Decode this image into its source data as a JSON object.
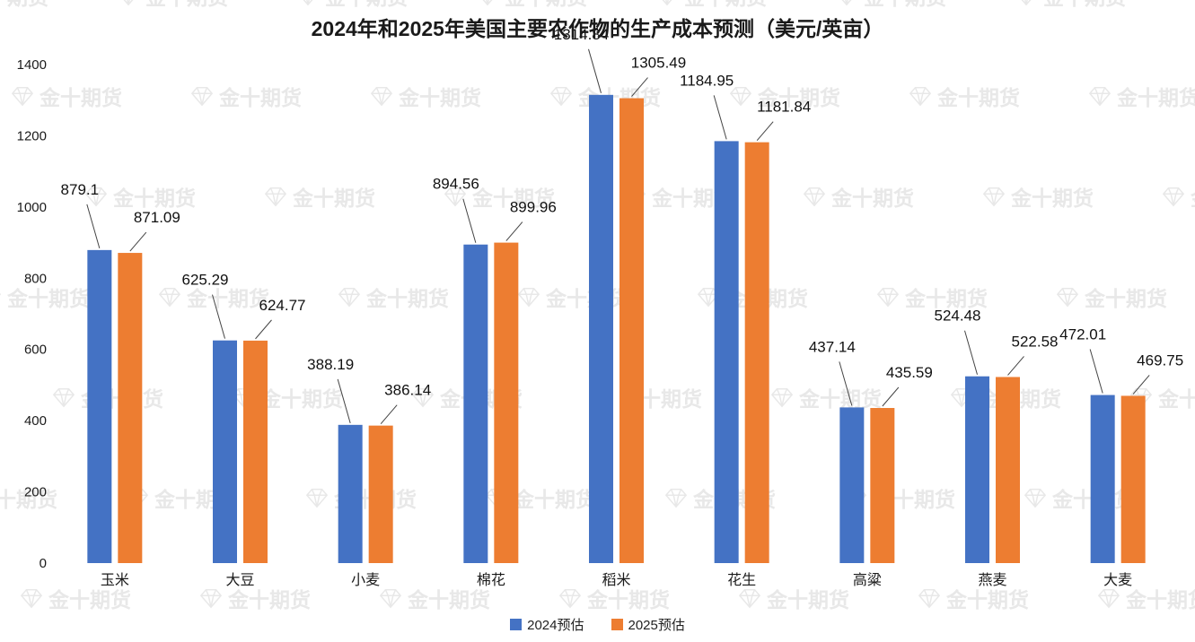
{
  "watermark": {
    "icon": "gem-icon",
    "text": "金十期货"
  },
  "chart_data": {
    "type": "bar",
    "title": "2024年和2025年美国主要农作物的生产成本预测（美元/英亩）",
    "categories": [
      "玉米",
      "大豆",
      "小麦",
      "棉花",
      "稻米",
      "花生",
      "高粱",
      "燕麦",
      "大麦"
    ],
    "series": [
      {
        "name": "2024预估",
        "color": "#4472C4",
        "values": [
          879.1,
          625.29,
          388.19,
          894.56,
          1314.84,
          1184.95,
          437.14,
          524.48,
          472.01
        ]
      },
      {
        "name": "2025预估",
        "color": "#ED7D31",
        "values": [
          871.09,
          624.77,
          386.14,
          899.96,
          1305.49,
          1181.84,
          435.59,
          522.58,
          469.75
        ]
      }
    ],
    "xlabel": "",
    "ylabel": "",
    "ylim": [
      0,
      1400
    ],
    "yticks": [
      0,
      200,
      400,
      600,
      800,
      1000,
      1200,
      1400
    ],
    "grid": false,
    "legend_position": "bottom",
    "value_labels": true
  }
}
